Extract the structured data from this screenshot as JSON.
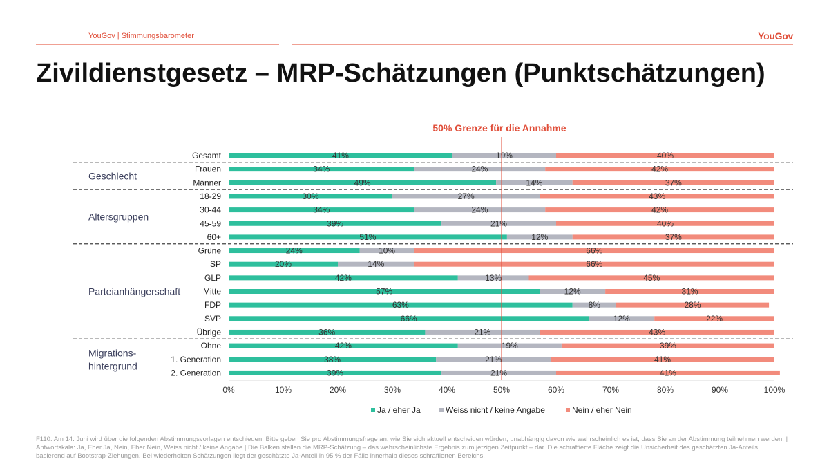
{
  "header": {
    "left_label": "YouGov | Stimmungsbarometer",
    "logo": "YouGov"
  },
  "title": "Zivildienstgesetz – MRP-Schätzungen (Punktschätzungen)",
  "footnote": "F110: Am 14. Juni wird über die folgenden Abstimmungsvorlagen entschieden. Bitte geben Sie pro Abstimmungsfrage an, wie Sie sich aktuell entscheiden würden, unabhängig davon wie wahrscheinlich es ist, dass Sie an der Abstimmung teilnehmen werden. | Antwortskala: Ja, Eher Ja, Nein, Eher Nein, Weiss nicht / keine Angabe | Die Balken stellen die MRP-Schätzung – das wahrscheinlichste Ergebnis zum jetzigen Zeitpunkt – dar. Die schraffierte Fläche zeigt die Unsicherheit des geschätzten Ja-Anteils, basierend auf Bootstrap-Ziehungen. Bei wiederholten Schätzungen liegt der geschätzte Ja-Anteil in 95 % der Fälle innerhalb dieses schraffierten Bereichs.",
  "chart_data": {
    "type": "bar",
    "orientation": "horizontal-stacked",
    "reference_line": {
      "value": 50,
      "label": "50% Grenze für die Annahme",
      "color": "#e04e39"
    },
    "categories": [
      "Gesamt",
      "Frauen",
      "Männer",
      "18-29",
      "30-44",
      "45-59",
      "60+",
      "Grüne",
      "SP",
      "GLP",
      "Mitte",
      "FDP",
      "SVP",
      "Übrige",
      "Ohne",
      "1. Generation",
      "2. Generation"
    ],
    "groups": [
      {
        "label": "Geschlecht",
        "categories": [
          "Frauen",
          "Männer"
        ]
      },
      {
        "label": "Altersgruppen",
        "categories": [
          "18-29",
          "30-44",
          "45-59",
          "60+"
        ]
      },
      {
        "label": "Parteianhängerschaft",
        "categories": [
          "Grüne",
          "SP",
          "GLP",
          "Mitte",
          "FDP",
          "SVP",
          "Übrige"
        ]
      },
      {
        "label": "Migrations-\nhintergrund",
        "categories": [
          "Ohne",
          "1. Generation",
          "2. Generation"
        ]
      }
    ],
    "series": [
      {
        "name": "Ja / eher Ja",
        "color": "#2ebf9d",
        "values": [
          41,
          34,
          49,
          30,
          34,
          39,
          51,
          24,
          20,
          42,
          57,
          63,
          66,
          36,
          42,
          38,
          39
        ]
      },
      {
        "name": "Weiss nicht / keine Angabe",
        "color": "#b4b6c0",
        "values": [
          19,
          24,
          14,
          27,
          24,
          21,
          12,
          10,
          14,
          13,
          12,
          8,
          12,
          21,
          19,
          21,
          21
        ]
      },
      {
        "name": "Nein / eher Nein",
        "color": "#f28b7c",
        "values": [
          40,
          42,
          37,
          43,
          42,
          40,
          37,
          66,
          66,
          45,
          31,
          28,
          22,
          43,
          39,
          41,
          41
        ]
      }
    ],
    "xlim": [
      0,
      100
    ],
    "x_ticks": [
      "0%",
      "10%",
      "20%",
      "30%",
      "40%",
      "50%",
      "60%",
      "70%",
      "80%",
      "90%",
      "100%"
    ],
    "legend_position": "bottom"
  }
}
